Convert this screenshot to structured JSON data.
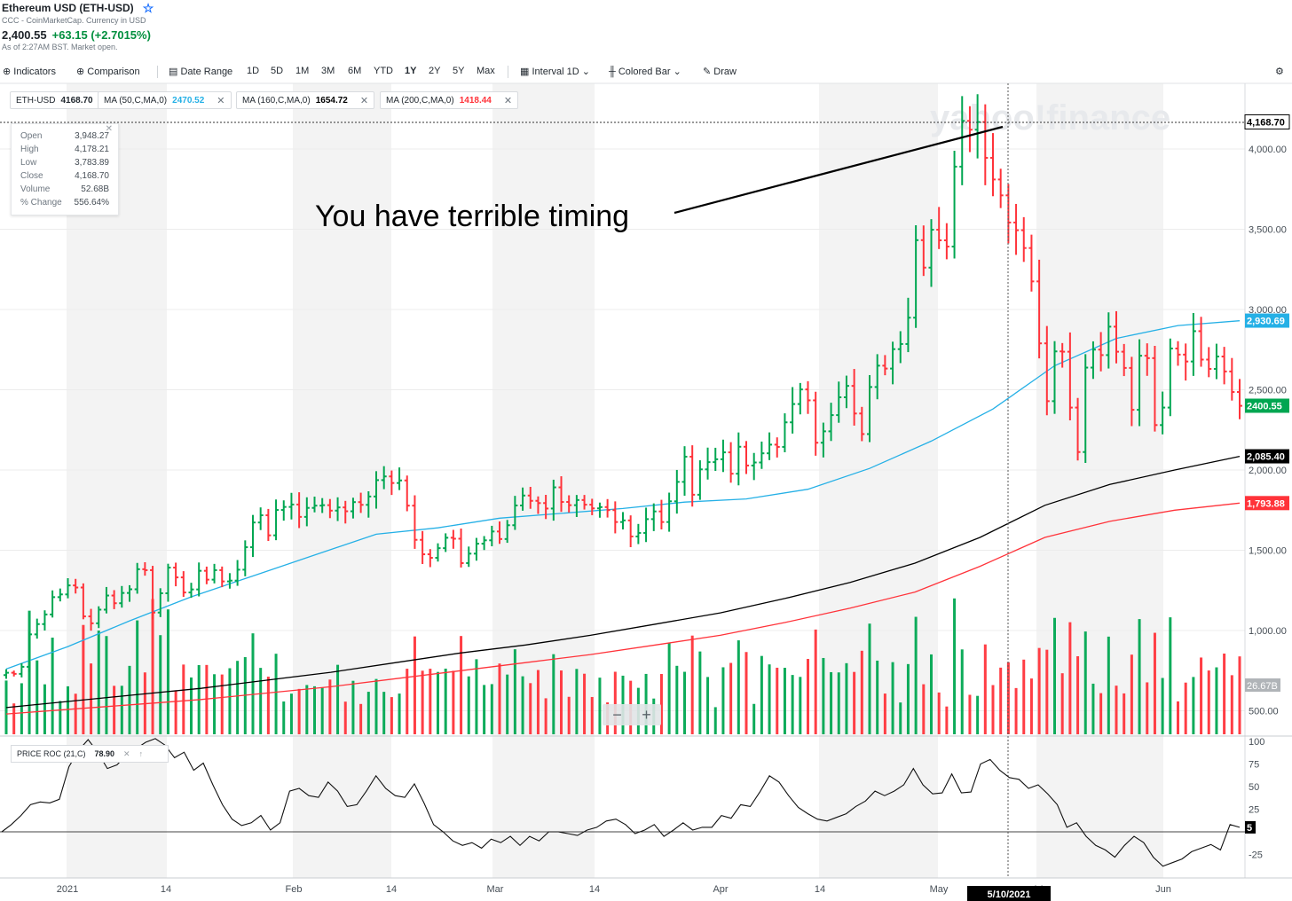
{
  "header": {
    "title": "Ethereum USD (ETH-USD)",
    "source": "CCC - CoinMarketCap. Currency in USD",
    "price": "2,400.55",
    "change": "+63.15 (+2.7015%)",
    "timestamp": "As of 2:27AM BST. Market open."
  },
  "toolbar": {
    "indicators": "Indicators",
    "comparison": "Comparison",
    "date_range": "Date Range",
    "ranges": [
      "1D",
      "5D",
      "1M",
      "3M",
      "6M",
      "YTD",
      "1Y",
      "2Y",
      "5Y",
      "Max"
    ],
    "active_range": "1Y",
    "interval": "Interval",
    "interval_value": "1D",
    "chart_style": "Colored Bar",
    "draw": "Draw"
  },
  "legend_chips": [
    {
      "label": "ETH-USD",
      "value": "4168.70",
      "color": "#232a31"
    },
    {
      "label": "MA (50,C,MA,0)",
      "value": "2470.52",
      "color": "#25b0e6"
    },
    {
      "label": "MA (160,C,MA,0)",
      "value": "1654.72",
      "color": "#000000"
    },
    {
      "label": "MA (200,C,MA,0)",
      "value": "1418.44",
      "color": "#ff333a"
    }
  ],
  "ohlc_tooltip": {
    "rows": [
      {
        "label": "Open",
        "value": "3,948.27"
      },
      {
        "label": "High",
        "value": "4,178.21"
      },
      {
        "label": "Low",
        "value": "3,783.89"
      },
      {
        "label": "Close",
        "value": "4,168.70"
      },
      {
        "label": "Volume",
        "value": "52.68B"
      },
      {
        "label": "% Change",
        "value": "556.64%"
      }
    ]
  },
  "annotation": "You have terrible timing",
  "watermark": "yahoo!finance",
  "roc_panel": {
    "label": "PRICE ROC (21,C)",
    "value": "78.90"
  },
  "colors": {
    "up": "#00a651",
    "down": "#ff333a",
    "ma50": "#25b0e6",
    "ma160": "#000000",
    "ma200": "#ff333a"
  },
  "chart_data": [
    {
      "type": "bar",
      "title": "Ethereum USD (ETH-USD)",
      "description_style": "Colored Bar (OHLC)",
      "x_tick_labels": [
        "2021",
        "14",
        "Feb",
        "14",
        "Mar",
        "14",
        "Apr",
        "14",
        "May",
        "14",
        "Jun"
      ],
      "y_tick_labels": [
        "4,000.00",
        "3,500.00",
        "3,000.00",
        "2,500.00",
        "2,000.00",
        "1,500.00",
        "1,000.00",
        "500.00"
      ],
      "ylim": [
        400,
        4300
      ],
      "price_tags": {
        "crosshair": "4,168.70",
        "ma50": "2,930.69",
        "last": "2400.55",
        "ma160": "2,085.40",
        "ma200": "1,793.88",
        "volume": "26.67B"
      },
      "crosshair_date": "5/10/2021",
      "series": [
        {
          "name": "ETH-USD",
          "kind": "ohlc",
          "close": [
            737,
            730,
            774,
            976,
            1040,
            1100,
            1208,
            1225,
            1281,
            1268,
            1088,
            1045,
            1130,
            1218,
            1170,
            1234,
            1257,
            1382,
            1376,
            1112,
            1232,
            1392,
            1331,
            1237,
            1256,
            1372,
            1317,
            1376,
            1306,
            1311,
            1379,
            1519,
            1673,
            1718,
            1593,
            1751,
            1770,
            1785,
            1708,
            1764,
            1778,
            1781,
            1747,
            1767,
            1743,
            1800,
            1783,
            1835,
            1937,
            1960,
            1919,
            1935,
            1778,
            1565,
            1475,
            1453,
            1513,
            1578,
            1572,
            1420,
            1479,
            1541,
            1562,
            1617,
            1570,
            1656,
            1779,
            1841,
            1808,
            1794,
            1760,
            1892,
            1801,
            1781,
            1813,
            1784,
            1761,
            1769,
            1750,
            1676,
            1686,
            1586,
            1608,
            1694,
            1742,
            1676,
            1805,
            1926,
            2083,
            1846,
            2004,
            2049,
            2067,
            2110,
            1977,
            2145,
            2028,
            2047,
            2104,
            2158,
            2144,
            2297,
            2411,
            2502,
            2434,
            2170,
            2241,
            2342,
            2453,
            2524,
            2352,
            2224,
            2517,
            2650,
            2632,
            2753,
            2785,
            2949,
            3432,
            3261,
            3497,
            3431,
            3392,
            3890,
            4175,
            4120,
            4168,
            3945,
            3810,
            3711,
            3542,
            3494,
            3383,
            3175,
            2789,
            2429,
            2739,
            2737,
            2389,
            2112,
            2638,
            2750,
            2716,
            2893,
            2737,
            2636,
            2375,
            2712,
            2697,
            2280,
            2389,
            2757,
            2719,
            2676,
            2865,
            2688,
            2630,
            2707,
            2614,
            2486,
            2400
          ]
        },
        {
          "name": "MA (50,C,MA,0)",
          "kind": "line",
          "values_sampled": [
            760,
            900,
            1060,
            1210,
            1340,
            1470,
            1600,
            1640,
            1700,
            1730,
            1760,
            1800,
            1820,
            1880,
            2010,
            2180,
            2380,
            2650,
            2820,
            2900,
            2930
          ]
        },
        {
          "name": "MA (160,C,MA,0)",
          "kind": "line",
          "values_sampled": [
            520,
            560,
            600,
            640,
            690,
            740,
            800,
            860,
            910,
            970,
            1040,
            1110,
            1200,
            1300,
            1420,
            1580,
            1780,
            1910,
            2000,
            2085
          ]
        },
        {
          "name": "MA (200,C,MA,0)",
          "kind": "line",
          "values_sampled": [
            480,
            510,
            540,
            570,
            610,
            650,
            700,
            750,
            800,
            850,
            910,
            970,
            1050,
            1140,
            1240,
            1400,
            1580,
            1680,
            1750,
            1794
          ]
        }
      ]
    },
    {
      "type": "line",
      "title": "PRICE ROC (21,C)",
      "y_tick_labels": [
        "100",
        "75",
        "50",
        "25",
        "-25"
      ],
      "ylim": [
        -50,
        110
      ],
      "last_value": "5",
      "series": [
        {
          "name": "PRICE ROC (21,C)",
          "values": [
            0,
            8,
            18,
            30,
            33,
            32,
            36,
            72,
            90,
            102,
            88,
            70,
            74,
            85,
            92,
            99,
            103,
            96,
            82,
            88,
            68,
            76,
            52,
            30,
            14,
            7,
            10,
            18,
            2,
            10,
            45,
            48,
            40,
            38,
            55,
            45,
            28,
            30,
            45,
            62,
            48,
            40,
            38,
            53,
            32,
            8,
            0,
            -10,
            -15,
            -12,
            -18,
            -8,
            -12,
            -5,
            -15,
            -5,
            -10,
            0,
            0,
            -2,
            -4,
            2,
            5,
            12,
            14,
            8,
            -2,
            2,
            8,
            -5,
            2,
            10,
            2,
            5,
            5,
            18,
            15,
            30,
            28,
            44,
            62,
            55,
            40,
            27,
            20,
            14,
            12,
            16,
            20,
            28,
            34,
            45,
            40,
            45,
            52,
            70,
            52,
            42,
            43,
            64,
            43,
            44,
            75,
            80,
            68,
            60,
            58,
            48,
            52,
            42,
            30,
            5,
            10,
            -5,
            -15,
            -20,
            -28,
            -15,
            -5,
            -12,
            -28,
            -38,
            -34,
            -30,
            -22,
            -18,
            -14,
            -20,
            8,
            5
          ]
        }
      ]
    }
  ]
}
